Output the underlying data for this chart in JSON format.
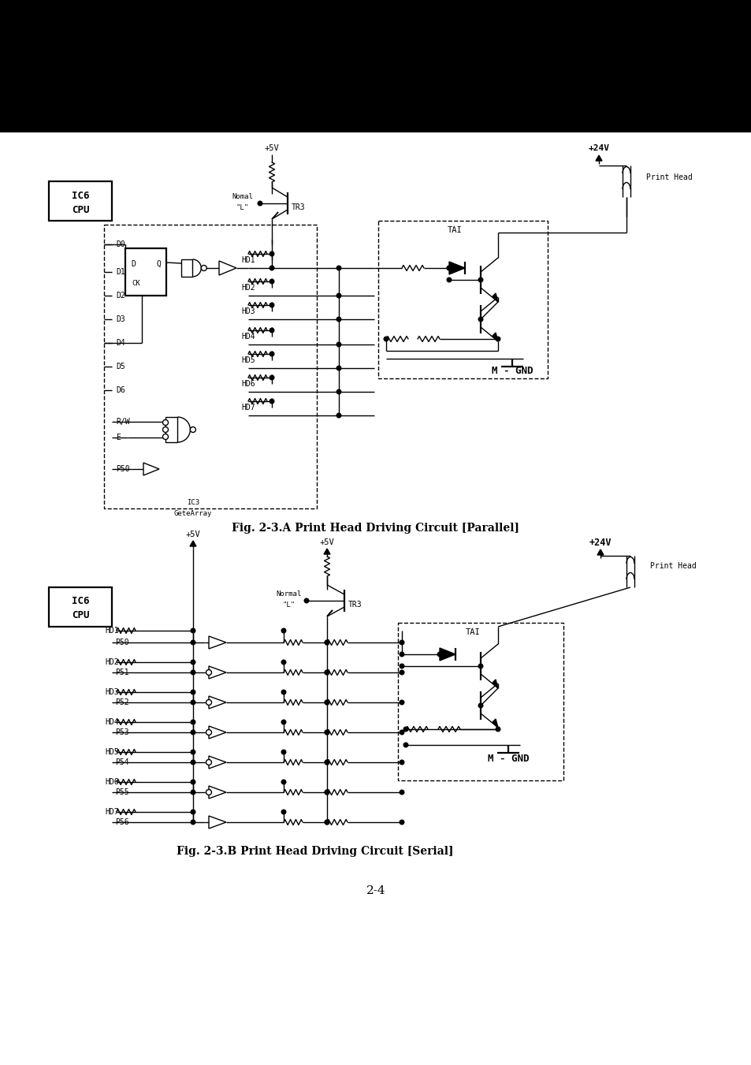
{
  "fig_width": 9.54,
  "fig_height": 13.51,
  "dpi": 100,
  "bg_color": "#ffffff",
  "caption_a": "Fig. 2-3.A Print Head Driving Circuit [Parallel]",
  "caption_b": "Fig. 2-3.B Print Head Driving Circuit [Serial]",
  "page_num": "2-4"
}
